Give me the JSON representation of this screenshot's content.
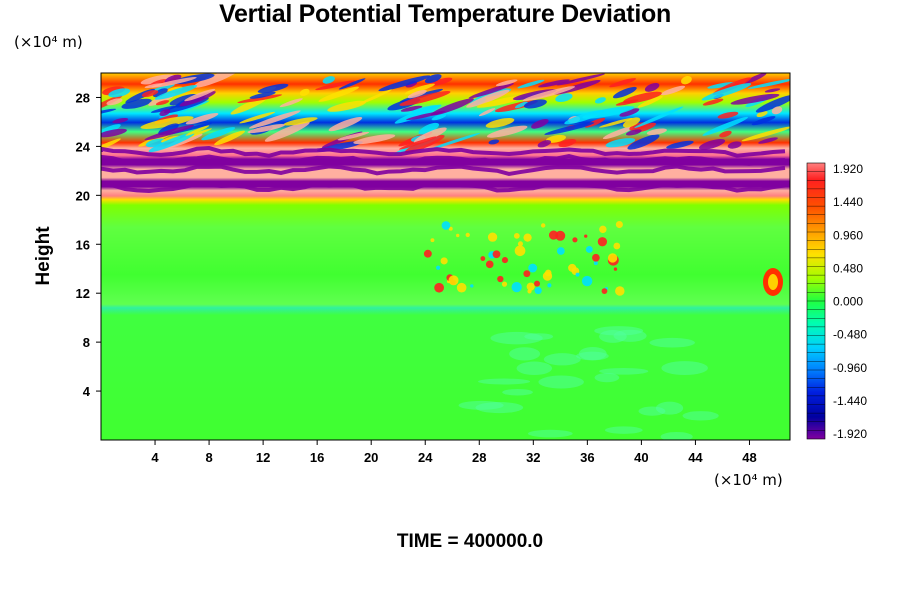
{
  "chart_data": {
    "type": "heatmap",
    "title": "Vertial Potential Temperature Deviation",
    "ylabel": "Height",
    "y_unit": "(×10⁴ m)",
    "x_unit": "(×10⁴ m)",
    "xlim": [
      0,
      51
    ],
    "ylim": [
      0,
      30
    ],
    "x_ticks": [
      "4",
      "8",
      "12",
      "16",
      "20",
      "24",
      "28",
      "32",
      "36",
      "40",
      "44",
      "48"
    ],
    "y_ticks": [
      "4",
      "8",
      "12",
      "16",
      "20",
      "24",
      "28"
    ],
    "colorbar": {
      "min": -1.92,
      "max": 1.92,
      "labels": [
        "1.920",
        "1.440",
        "0.960",
        "0.480",
        "0.000",
        "-0.480",
        "-0.960",
        "-1.440",
        "-1.920"
      ]
    },
    "field_bands": [
      {
        "y_range": [
          0,
          10.5
        ],
        "value": 0.05,
        "description_value": "near zero"
      },
      {
        "y_range": [
          10.5,
          12
        ],
        "value": 0.2
      },
      {
        "y_range": [
          12,
          19
        ],
        "value": 0.1
      },
      {
        "y_range": [
          19.5,
          20
        ],
        "value": 1.92
      },
      {
        "y_range": [
          20,
          21
        ],
        "value": -1.92
      },
      {
        "y_range": [
          21,
          22
        ],
        "value": 1.92
      },
      {
        "y_range": [
          22,
          23
        ],
        "value": -1.92
      },
      {
        "y_range": [
          23,
          24
        ],
        "value": 1.5
      },
      {
        "y_range": [
          24,
          25.5
        ],
        "value": 0.5
      },
      {
        "y_range": [
          25.5,
          26.5
        ],
        "value": -1.44
      },
      {
        "y_range": [
          26.5,
          28
        ],
        "value": 0.96
      },
      {
        "y_range": [
          28,
          30
        ],
        "value": 1.44
      }
    ]
  },
  "footer": {
    "time_label": "TIME = 400000.0"
  }
}
